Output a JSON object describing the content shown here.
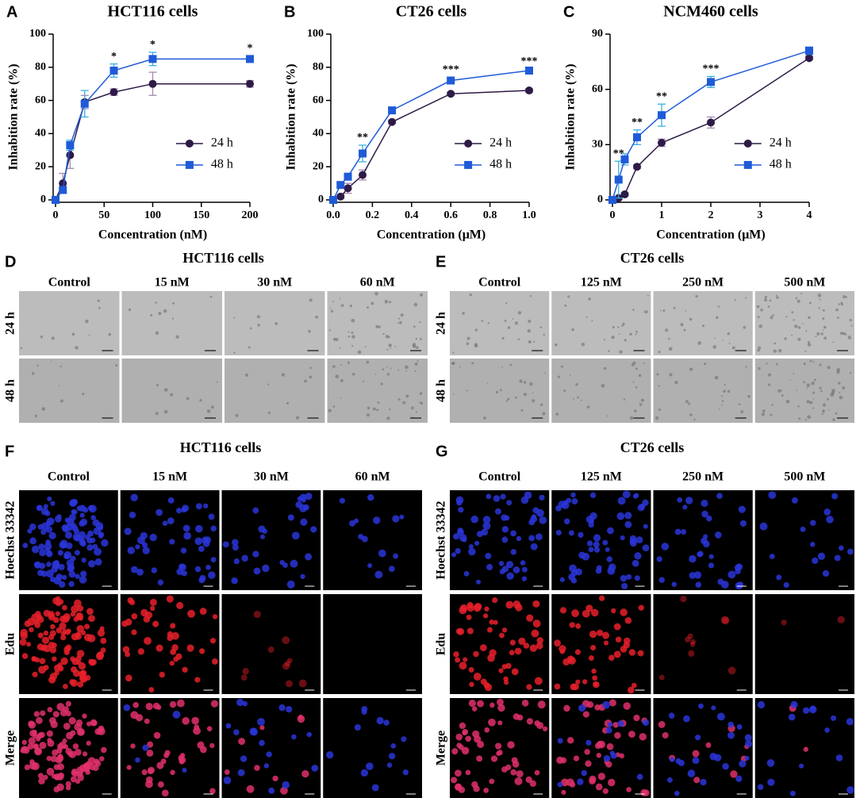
{
  "chart_data": [
    {
      "type": "line",
      "label": "A",
      "title": "HCT116 cells",
      "xlabel": "Concentration (nM)",
      "ylabel": "Inhabition rate (%)",
      "x": [
        0,
        7.5,
        15,
        30,
        60,
        100,
        200
      ],
      "xlim": [
        0,
        200
      ],
      "xticks": [
        0,
        50,
        100,
        150,
        200
      ],
      "ylim": [
        0,
        100
      ],
      "yticks": [
        0,
        20,
        40,
        60,
        80,
        100
      ],
      "legend": "right",
      "series": [
        {
          "name": "24 h",
          "color": "#2e1a47",
          "error_color": "#a38bb0",
          "marker": "circle",
          "values": [
            0,
            10,
            27,
            59,
            65,
            70,
            70
          ],
          "errors": [
            0,
            6,
            8,
            4,
            2,
            7,
            2
          ]
        },
        {
          "name": "48 h",
          "color": "#1f5bd8",
          "error_color": "#3ab0e0",
          "marker": "square",
          "values": [
            0,
            6,
            33,
            58,
            78,
            85,
            85
          ],
          "errors": [
            0,
            2,
            3,
            8,
            4,
            4,
            2
          ]
        }
      ],
      "annotations": [
        {
          "x": 60,
          "text": "*"
        },
        {
          "x": 100,
          "text": "*"
        },
        {
          "x": 200,
          "text": "*"
        }
      ]
    },
    {
      "type": "line",
      "label": "B",
      "title": "CT26 cells",
      "xlabel": "Concentration (μM)",
      "ylabel": "Inhabition rate (%)",
      "x": [
        0,
        0.0375,
        0.075,
        0.15,
        0.3,
        0.6,
        1.0
      ],
      "xlim": [
        0,
        1.0
      ],
      "xticks": [
        {
          "value": 0,
          "label": "0.0"
        },
        0.2,
        0.4,
        0.6,
        0.8,
        {
          "value": 1,
          "label": "1.0"
        }
      ],
      "ylim": [
        0,
        100
      ],
      "yticks": [
        0,
        20,
        40,
        60,
        80,
        100
      ],
      "legend": "right",
      "series": [
        {
          "name": "24 h",
          "color": "#2e1a47",
          "error_color": "#a38bb0",
          "marker": "circle",
          "values": [
            0,
            2,
            7,
            15,
            47,
            64,
            66
          ],
          "errors": [
            0,
            1,
            3,
            3,
            1,
            1,
            1
          ]
        },
        {
          "name": "48 h",
          "color": "#1f5bd8",
          "error_color": "#3ab0e0",
          "marker": "square",
          "values": [
            0,
            9,
            14,
            28,
            54,
            72,
            78
          ],
          "errors": [
            0,
            1,
            2,
            5,
            1,
            2,
            1
          ]
        }
      ],
      "annotations": [
        {
          "x": 0.15,
          "text": "**"
        },
        {
          "x": 0.6,
          "text": "***"
        },
        {
          "x": 1.0,
          "text": "***"
        }
      ]
    },
    {
      "type": "line",
      "label": "C",
      "title": "NCM460 cells",
      "xlabel": "Concentration (μM)",
      "ylabel": "Inhabition rate (%)",
      "x": [
        0,
        0.125,
        0.25,
        0.5,
        1,
        2,
        4
      ],
      "xlim": [
        0,
        4
      ],
      "xticks": [
        0,
        1,
        2,
        3,
        4
      ],
      "ylim": [
        0,
        90
      ],
      "yticks": [
        0,
        30,
        60,
        90
      ],
      "legend": "right",
      "series": [
        {
          "name": "24 h",
          "color": "#2e1a47",
          "error_color": "#a38bb0",
          "marker": "circle",
          "values": [
            0,
            1,
            3,
            18,
            31,
            42,
            77
          ],
          "errors": [
            0,
            1,
            1,
            1,
            2,
            3,
            1
          ]
        },
        {
          "name": "48 h",
          "color": "#1f5bd8",
          "error_color": "#3ab0e0",
          "marker": "square",
          "values": [
            0,
            11,
            22,
            34,
            46,
            64,
            81
          ],
          "errors": [
            0,
            10,
            3,
            4,
            6,
            3,
            2
          ]
        }
      ],
      "annotations": [
        {
          "x": 0.125,
          "text": "**"
        },
        {
          "x": 0.5,
          "text": "**"
        },
        {
          "x": 1,
          "text": "**"
        },
        {
          "x": 2,
          "text": "***"
        }
      ]
    }
  ],
  "image_panels": [
    {
      "label": "D",
      "title": "HCT116 cells",
      "columns": [
        "Control",
        "15 nM",
        "30 nM",
        "60 nM"
      ],
      "rows": [
        "24 h",
        "48 h"
      ]
    },
    {
      "label": "E",
      "title": "CT26 cells",
      "columns": [
        "Control",
        "125 nM",
        "250 nM",
        "500 nM"
      ],
      "rows": [
        "24 h",
        "48 h"
      ]
    },
    {
      "label": "F",
      "title": "HCT116 cells",
      "columns": [
        "Control",
        "15 nM",
        "30 nM",
        "60 nM"
      ],
      "rows": [
        "Hoechst 33342",
        "Edu",
        "Merge"
      ]
    },
    {
      "label": "G",
      "title": "CT26 cells",
      "columns": [
        "Control",
        "125 nM",
        "250 nM",
        "500 nM"
      ],
      "rows": [
        "Hoechst 33342",
        "Edu",
        "Merge"
      ]
    }
  ]
}
